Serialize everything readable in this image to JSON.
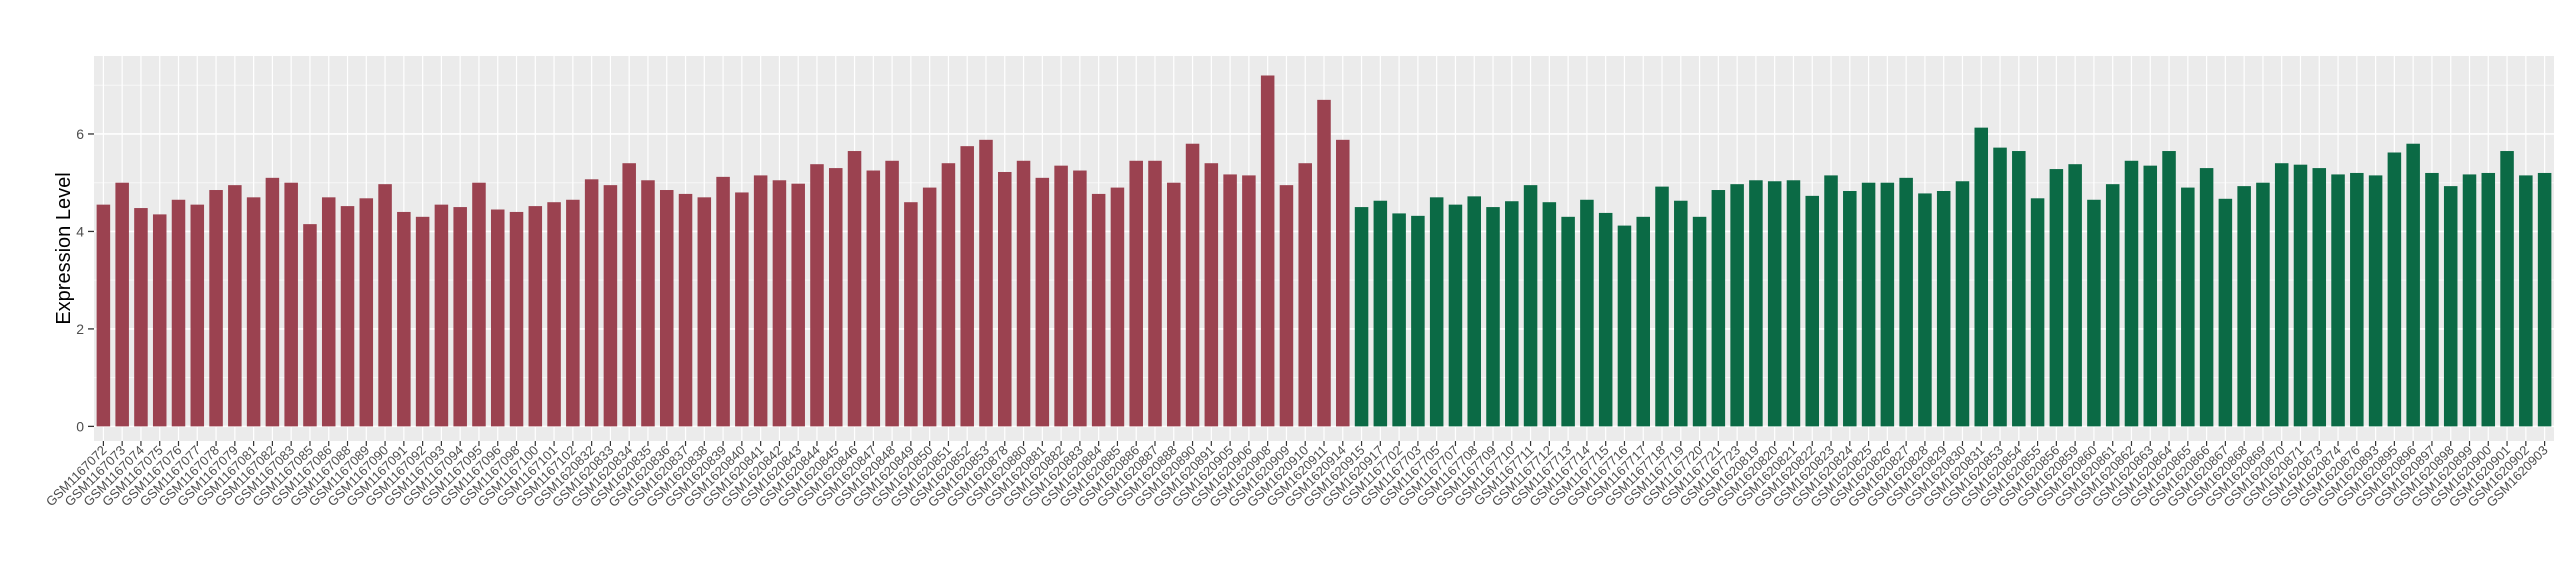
{
  "chart_data": {
    "type": "bar",
    "title": "",
    "xlabel": "",
    "ylabel": "Expression Level",
    "ylim": [
      -0.3,
      7.6
    ],
    "yticks": [
      0,
      2,
      4,
      6
    ],
    "grid": true,
    "legend": "none",
    "colors": {
      "group_a": "#9b4250",
      "group_b": "#0b6a45",
      "panel": "#ebebeb",
      "grid": "#ffffff"
    },
    "categories": [
      "GSM1167072",
      "GSM1167073",
      "GSM1167074",
      "GSM1167075",
      "GSM1167076",
      "GSM1167077",
      "GSM1167078",
      "GSM1167079",
      "GSM1167081",
      "GSM1167082",
      "GSM1167083",
      "GSM1167085",
      "GSM1167086",
      "GSM1167088",
      "GSM1167089",
      "GSM1167090",
      "GSM1167091",
      "GSM1167092",
      "GSM1167093",
      "GSM1167094",
      "GSM1167095",
      "GSM1167096",
      "GSM1167098",
      "GSM1167100",
      "GSM1167101",
      "GSM1167102",
      "GSM1620832",
      "GSM1620833",
      "GSM1620834",
      "GSM1620835",
      "GSM1620836",
      "GSM1620837",
      "GSM1620838",
      "GSM1620839",
      "GSM1620840",
      "GSM1620841",
      "GSM1620842",
      "GSM1620843",
      "GSM1620844",
      "GSM1620845",
      "GSM1620846",
      "GSM1620847",
      "GSM1620848",
      "GSM1620849",
      "GSM1620850",
      "GSM1620851",
      "GSM1620852",
      "GSM1620853",
      "GSM1620878",
      "GSM1620880",
      "GSM1620881",
      "GSM1620882",
      "GSM1620883",
      "GSM1620884",
      "GSM1620885",
      "GSM1620886",
      "GSM1620887",
      "GSM1620888",
      "GSM1620890",
      "GSM1620891",
      "GSM1620905",
      "GSM1620906",
      "GSM1620908",
      "GSM1620909",
      "GSM1620910",
      "GSM1620911",
      "GSM1620914",
      "GSM1620915",
      "GSM1620917",
      "GSM1167702",
      "GSM1167703",
      "GSM1167705",
      "GSM1167707",
      "GSM1167708",
      "GSM1167709",
      "GSM1167710",
      "GSM1167711",
      "GSM1167712",
      "GSM1167713",
      "GSM1167714",
      "GSM1167715",
      "GSM1167716",
      "GSM1167717",
      "GSM1167718",
      "GSM1167719",
      "GSM1167720",
      "GSM1167721",
      "GSM1167723",
      "GSM1620819",
      "GSM1620820",
      "GSM1620821",
      "GSM1620822",
      "GSM1620823",
      "GSM1620824",
      "GSM1620825",
      "GSM1620826",
      "GSM1620827",
      "GSM1620828",
      "GSM1620829",
      "GSM1620830",
      "GSM1620831",
      "GSM1620853",
      "GSM1620854",
      "GSM1620855",
      "GSM1620856",
      "GSM1620859",
      "GSM1620860",
      "GSM1620861",
      "GSM1620862",
      "GSM1620863",
      "GSM1620864",
      "GSM1620865",
      "GSM1620866",
      "GSM1620867",
      "GSM1620868",
      "GSM1620869",
      "GSM1620870",
      "GSM1620871",
      "GSM1620873",
      "GSM1620874",
      "GSM1620876",
      "GSM1620893",
      "GSM1620895",
      "GSM1620896",
      "GSM1620897",
      "GSM1620898",
      "GSM1620899",
      "GSM1620900",
      "GSM1620901",
      "GSM1620902",
      "GSM1620903"
    ],
    "series": [
      {
        "values": [
          4.55,
          5.0,
          4.48,
          4.35,
          4.65,
          4.55,
          4.85,
          4.95,
          4.7,
          5.1,
          5.0,
          4.15,
          4.7,
          4.52,
          4.68,
          4.97,
          4.4,
          4.3,
          4.55,
          4.5,
          5.0,
          4.45,
          4.4,
          4.52,
          4.6,
          4.65,
          5.07,
          4.95,
          5.4,
          5.05,
          4.85,
          4.77,
          4.7,
          5.12,
          4.8,
          5.15,
          5.05,
          4.98,
          5.38,
          5.3,
          5.65,
          5.25,
          5.45,
          4.6,
          4.9,
          5.4,
          5.75,
          5.88,
          5.22,
          5.45,
          5.1,
          5.35,
          5.25,
          4.77,
          4.9,
          5.45,
          5.45,
          5.0,
          5.8,
          5.4,
          5.17,
          5.15,
          7.2,
          4.95,
          5.4,
          6.7,
          5.88,
          null,
          null,
          null,
          null,
          null,
          null,
          null,
          null,
          null,
          null,
          null,
          null,
          null,
          null,
          null,
          null,
          null,
          null,
          null,
          null,
          null,
          null,
          null,
          null,
          null,
          null,
          null,
          null,
          null,
          null,
          null,
          null,
          null,
          null,
          null,
          null,
          null,
          null,
          null,
          null,
          null,
          null,
          null,
          null,
          null,
          null,
          null,
          null,
          null,
          null,
          null,
          null,
          null,
          null,
          null,
          null,
          null,
          null,
          null,
          null,
          null,
          null,
          null,
          null
        ]
      },
      {
        "values": [
          null,
          null,
          null,
          null,
          null,
          null,
          null,
          null,
          null,
          null,
          null,
          null,
          null,
          null,
          null,
          null,
          null,
          null,
          null,
          null,
          null,
          null,
          null,
          null,
          null,
          null,
          null,
          null,
          null,
          null,
          null,
          null,
          null,
          null,
          null,
          null,
          null,
          null,
          null,
          null,
          null,
          null,
          null,
          null,
          null,
          null,
          null,
          null,
          null,
          null,
          null,
          null,
          null,
          null,
          null,
          null,
          null,
          null,
          null,
          null,
          null,
          null,
          null,
          null,
          null,
          null,
          null,
          4.5,
          4.63,
          4.37,
          4.32,
          4.7,
          4.55,
          4.72,
          4.5,
          4.62,
          4.95,
          4.6,
          4.3,
          4.65,
          4.38,
          4.12,
          4.3,
          4.92,
          4.63,
          4.3,
          4.85,
          4.97,
          5.05,
          5.03,
          5.05,
          4.73,
          5.15,
          4.83,
          5.0,
          5.0,
          5.1,
          4.78,
          4.83,
          5.03,
          6.13,
          5.72,
          5.65,
          4.68,
          5.28,
          5.38,
          4.65,
          4.97,
          5.45,
          5.35,
          5.65,
          4.9,
          5.3,
          4.67,
          4.93,
          5.0,
          5.4,
          5.37,
          5.3,
          5.17,
          5.2,
          5.15,
          5.62,
          5.8,
          5.2,
          4.93,
          5.17,
          5.2,
          5.65,
          5.15,
          5.2
        ]
      }
    ]
  }
}
